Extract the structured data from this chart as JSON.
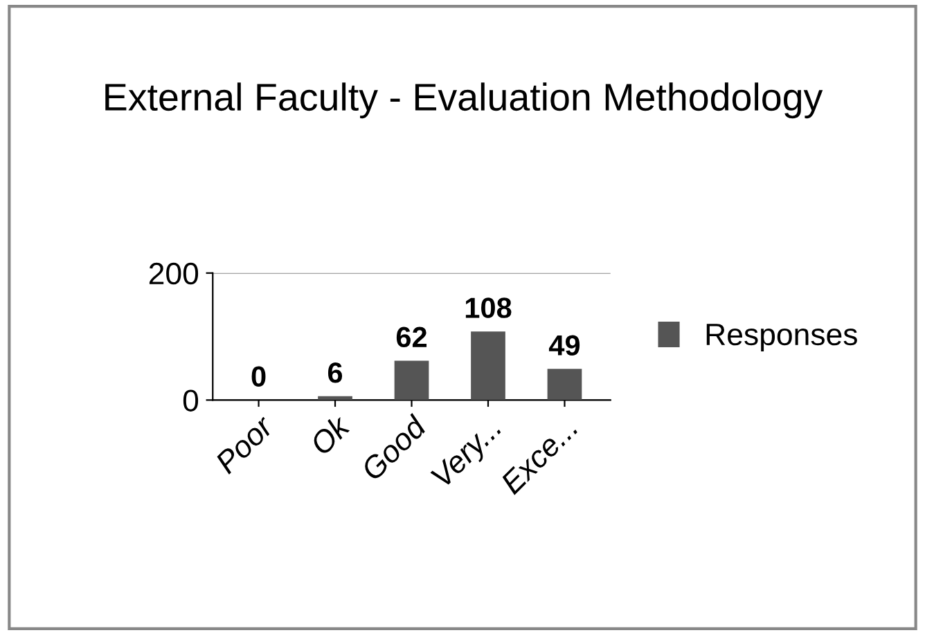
{
  "chart_data": {
    "type": "bar",
    "title": "External Faculty - Evaluation Methodology",
    "categories": [
      "Poor",
      "Ok",
      "Good",
      "Very...",
      "Exce..."
    ],
    "series": [
      {
        "name": "Responses",
        "color": "#555555",
        "values": [
          0,
          6,
          62,
          108,
          49
        ]
      }
    ],
    "ylim": [
      0,
      200
    ],
    "yticks": [
      0,
      200
    ],
    "grid": "y",
    "legend": "right",
    "data_labels": true
  }
}
